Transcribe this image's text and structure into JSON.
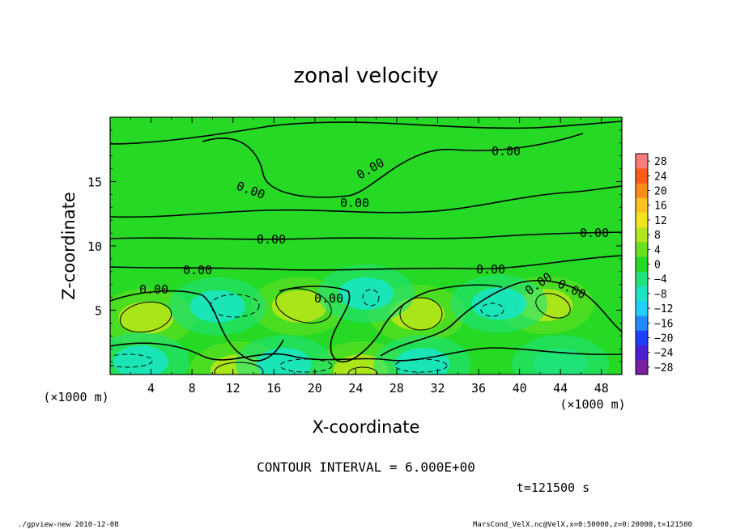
{
  "chart_data": {
    "type": "heatmap",
    "title": "zonal velocity",
    "xlabel": "X-coordinate",
    "ylabel": "Z-coordinate",
    "x_unit": "(×1000 m)",
    "y_unit": "(×1000 m)",
    "xlim": [
      0,
      50
    ],
    "ylim": [
      0,
      20
    ],
    "x_ticks": [
      "4",
      "8",
      "12",
      "16",
      "20",
      "24",
      "28",
      "32",
      "36",
      "40",
      "44",
      "48"
    ],
    "y_ticks": [
      "5",
      "10",
      "15"
    ],
    "colorbar_ticks": [
      "28",
      "24",
      "20",
      "16",
      "12",
      "8",
      "4",
      "0",
      "−4",
      "−8",
      "−12",
      "−16",
      "−20",
      "−24",
      "−28"
    ],
    "colorbar_range": [
      -30,
      30
    ],
    "contour_interval_label": "CONTOUR INTERVAL = 6.000E+00",
    "contour_labels": [
      "0.00",
      "0.00",
      "0.00",
      "0.00",
      "0.00",
      "0.00",
      "0.00",
      "0.00",
      "0.00",
      "0.00",
      "0.00",
      "0.00"
    ],
    "time_label": "t=121500 s",
    "annotation_blobs": [
      {
        "x": 3.5,
        "z": 4.4,
        "value": 8,
        "sign": "pos"
      },
      {
        "x": 18.5,
        "z": 5.3,
        "value": 9,
        "sign": "pos"
      },
      {
        "x": 30.0,
        "z": 4.7,
        "value": 8,
        "sign": "pos"
      },
      {
        "x": 42.5,
        "z": 5.4,
        "value": 8,
        "sign": "pos"
      },
      {
        "x": 12.5,
        "z": 0.3,
        "value": 8,
        "sign": "pos"
      },
      {
        "x": 24.5,
        "z": 0.3,
        "value": 6,
        "sign": "pos"
      },
      {
        "x": 10.5,
        "z": 5.3,
        "value": -9,
        "sign": "neg"
      },
      {
        "x": 25.0,
        "z": 6.3,
        "value": -7,
        "sign": "neg"
      },
      {
        "x": 38.0,
        "z": 5.5,
        "value": -7,
        "sign": "neg"
      },
      {
        "x": 3.0,
        "z": 1.0,
        "value": -7,
        "sign": "neg"
      },
      {
        "x": 17.0,
        "z": 0.8,
        "value": -9,
        "sign": "neg"
      },
      {
        "x": 30.5,
        "z": 0.8,
        "value": -9,
        "sign": "neg"
      },
      {
        "x": 44.0,
        "z": 0.8,
        "value": -6,
        "sign": "neg"
      }
    ],
    "legend": "colorbar-right",
    "grid": false
  },
  "footer": {
    "left": "./gpview-new  2010-12-08",
    "right": "MarsCond_VelX.nc@VelX,x=0:50000,z=0:20000,t=121500"
  }
}
